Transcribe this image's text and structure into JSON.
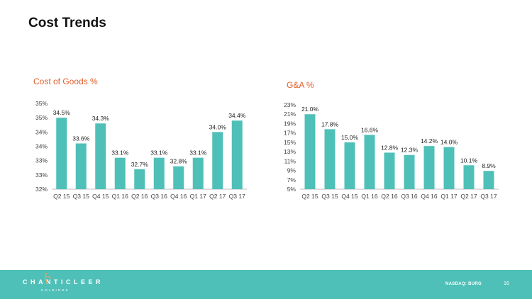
{
  "page": {
    "title": "Cost Trends"
  },
  "footer": {
    "logo_text": "CHANTICLEER",
    "logo_sub": "HOLDINGS",
    "ticker": "NASDAQ: BURG",
    "page_number": "16"
  },
  "chart_data": [
    {
      "id": "cogs",
      "type": "bar",
      "title": "Cost of Goods %",
      "categories": [
        "Q2 15",
        "Q3 15",
        "Q4 15",
        "Q1 16",
        "Q2 16",
        "Q3 16",
        "Q4 16",
        "Q1 17",
        "Q2 17",
        "Q3 17"
      ],
      "values": [
        34.5,
        33.6,
        34.3,
        33.1,
        32.7,
        33.1,
        32.8,
        33.1,
        34.0,
        34.4
      ],
      "value_labels": [
        "34.5%",
        "33.6%",
        "34.3%",
        "33.1%",
        "32.7%",
        "33.1%",
        "32.8%",
        "33.1%",
        "34.0%",
        "34.4%"
      ],
      "ylim": [
        32,
        35
      ],
      "yticks": [
        32,
        32.5,
        33,
        33.5,
        34,
        34.5,
        35
      ],
      "ytick_labels": [
        "32%",
        "33%",
        "33%",
        "34%",
        "34%",
        "35%",
        "35%"
      ],
      "grid": false,
      "bar_color": "#4fc0b8"
    },
    {
      "id": "ga",
      "type": "bar",
      "title": "G&A %",
      "categories": [
        "Q2 15",
        "Q3 15",
        "Q4 15",
        "Q1 16",
        "Q2 16",
        "Q3 16",
        "Q4 16",
        "Q1 17",
        "Q2 17",
        "Q3 17"
      ],
      "values": [
        21.0,
        17.8,
        15.0,
        16.6,
        12.8,
        12.3,
        14.2,
        14.0,
        10.1,
        8.9
      ],
      "value_labels": [
        "21.0%",
        "17.8%",
        "15.0%",
        "16.6%",
        "12.8%",
        "12.3%",
        "14.2%",
        "14.0%",
        "10.1%",
        "8.9%"
      ],
      "ylim": [
        5,
        23
      ],
      "yticks": [
        5,
        7,
        9,
        11,
        13,
        15,
        17,
        19,
        21,
        23
      ],
      "ytick_labels": [
        "5%",
        "7%",
        "9%",
        "11%",
        "13%",
        "15%",
        "17%",
        "19%",
        "21%",
        "23%"
      ],
      "grid": false,
      "bar_color": "#4fc0b8"
    }
  ]
}
